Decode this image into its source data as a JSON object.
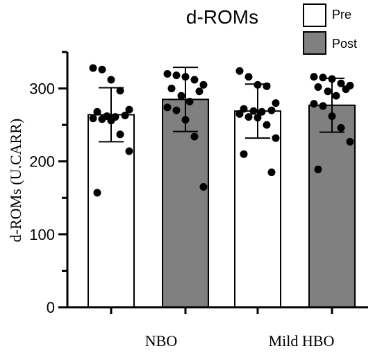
{
  "chart_data": {
    "type": "bar",
    "title": "d-ROMs",
    "ylabel": "d-ROMs (U.CARR)",
    "xlabel": "",
    "ylim": [
      0,
      350
    ],
    "yticks": [
      0,
      100,
      200,
      300
    ],
    "categories": [
      "NBO",
      "Mild HBO"
    ],
    "legend_position": "top-right",
    "series": [
      {
        "name": "Pre",
        "color": "#ffffff"
      },
      {
        "name": "Post",
        "color": "#808080"
      }
    ],
    "bars": [
      {
        "category": "NBO",
        "series": "Pre",
        "mean": 264,
        "sd": 37,
        "points": [
          328,
          326,
          312,
          297,
          271,
          268,
          263,
          262,
          261,
          259,
          258,
          256,
          237,
          214,
          157
        ]
      },
      {
        "category": "NBO",
        "series": "Post",
        "mean": 285,
        "sd": 44,
        "points": [
          320,
          318,
          316,
          312,
          305,
          300,
          296,
          290,
          282,
          274,
          270,
          257,
          234,
          165
        ]
      },
      {
        "category": "Mild HBO",
        "series": "Pre",
        "mean": 269,
        "sd": 37,
        "points": [
          324,
          316,
          305,
          303,
          280,
          272,
          270,
          269,
          268,
          265,
          261,
          260,
          250,
          232,
          210,
          185
        ]
      },
      {
        "category": "Mild HBO",
        "series": "Post",
        "mean": 277,
        "sd": 37,
        "points": [
          316,
          315,
          313,
          307,
          304,
          302,
          299,
          296,
          290,
          279,
          276,
          262,
          246,
          227,
          189
        ]
      }
    ]
  }
}
